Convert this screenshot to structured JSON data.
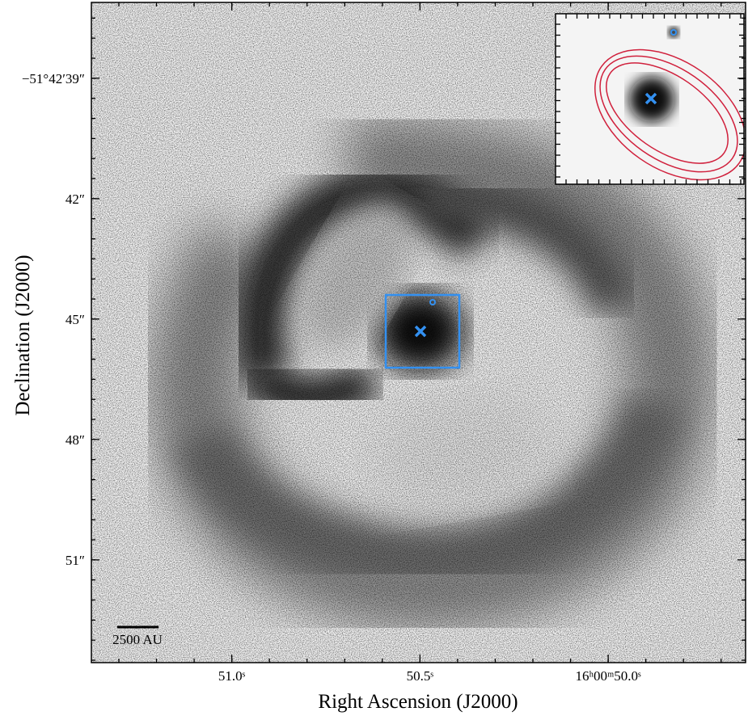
{
  "chart_data": {
    "type": "image",
    "x_label": "Right Ascension (J2000)",
    "y_label": "Declination (J2000)",
    "xlim": [
      51.373,
      49.635
    ],
    "xticks": [
      {
        "value": 51.0,
        "label": "51.0ˢ"
      },
      {
        "value": 50.5,
        "label": "50.5ˢ"
      },
      {
        "value": 50.0,
        "label": "16ʰ00ᵐ50.0ˢ"
      }
    ],
    "ylim": [
      37.11,
      53.56
    ],
    "yticks": [
      {
        "value": 39,
        "label": "−51°42′39″"
      },
      {
        "value": 42,
        "label": "42″"
      },
      {
        "value": 45,
        "label": "45″"
      },
      {
        "value": 48,
        "label": "48″"
      },
      {
        "value": 51,
        "label": "51″"
      }
    ],
    "scale_bar_label": "2500 AU",
    "marker_color": "#3390f0",
    "contour_color": "#d0203c"
  }
}
